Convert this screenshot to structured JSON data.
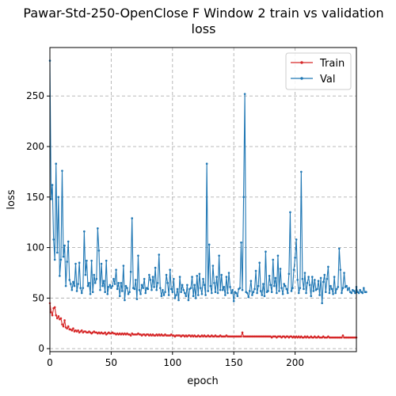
{
  "chart_data": {
    "type": "line",
    "title_line1": "Pawar-Std-250-OpenClose F Window 2 train vs validation",
    "title_line2": "loss",
    "xlabel": "epoch",
    "ylabel": "loss",
    "xlim": [
      0,
      250
    ],
    "ylim": [
      -3,
      298
    ],
    "xticks": [
      0,
      50,
      100,
      150,
      200
    ],
    "yticks": [
      0,
      50,
      100,
      150,
      200,
      250
    ],
    "grid": true,
    "legend_position": "top-right",
    "series": [
      {
        "name": "Train",
        "color": "#d62728",
        "values": [
          45,
          36,
          33,
          40,
          41,
          33,
          30,
          32,
          29,
          30,
          24,
          22,
          28,
          21,
          20,
          22,
          19,
          19,
          18,
          20,
          17,
          18,
          17,
          18,
          16,
          17,
          18,
          16,
          17,
          17,
          16,
          16,
          17,
          16,
          15,
          16,
          17,
          16,
          16,
          15,
          16,
          15,
          16,
          15,
          15,
          16,
          14,
          15,
          16,
          15,
          15,
          16,
          15,
          15,
          14,
          15,
          14,
          15,
          14,
          15,
          14,
          15,
          14,
          15,
          14,
          14,
          13,
          15,
          14,
          14,
          14,
          14,
          15,
          14,
          14,
          13,
          14,
          14,
          13,
          14,
          14,
          13,
          14,
          13,
          14,
          13,
          13,
          14,
          13,
          14,
          13,
          14,
          13,
          13,
          14,
          13,
          13,
          13,
          13,
          14,
          13,
          13,
          12,
          13,
          13,
          13,
          13,
          12,
          13,
          13,
          12,
          13,
          12,
          13,
          13,
          12,
          13,
          12,
          13,
          12,
          12,
          13,
          12,
          12,
          13,
          12,
          13,
          12,
          12,
          13,
          12,
          12,
          13,
          12,
          12,
          13,
          12,
          12,
          12,
          13,
          12,
          12,
          12,
          12,
          13,
          12,
          12,
          12,
          12,
          12,
          12,
          12,
          12,
          12,
          12,
          12,
          12,
          16,
          12,
          12,
          12,
          12,
          12,
          12,
          12,
          12,
          12,
          12,
          12,
          12,
          12,
          12,
          12,
          12,
          12,
          12,
          12,
          12,
          12,
          12,
          12,
          11,
          12,
          12,
          12,
          11,
          12,
          12,
          12,
          11,
          12,
          12,
          11,
          12,
          12,
          11,
          12,
          12,
          11,
          12,
          11,
          12,
          11,
          12,
          11,
          12,
          11,
          11,
          12,
          11,
          12,
          11,
          11,
          12,
          11,
          11,
          12,
          11,
          11,
          12,
          11,
          11,
          11,
          12,
          11,
          11,
          11,
          12,
          11,
          11,
          11,
          11,
          11,
          11,
          11,
          11,
          11,
          11,
          11,
          13,
          11,
          11,
          11,
          11,
          11,
          11,
          11,
          11,
          11,
          11,
          11
        ]
      },
      {
        "name": "Val",
        "color": "#1f77b4",
        "values": [
          285,
          148,
          162,
          108,
          88,
          183,
          95,
          150,
          72,
          88,
          176,
          91,
          102,
          62,
          86,
          106,
          68,
          64,
          58,
          66,
          62,
          84,
          57,
          64,
          85,
          60,
          55,
          60,
          116,
          73,
          87,
          62,
          65,
          54,
          87,
          56,
          73,
          65,
          69,
          119,
          97,
          58,
          84,
          62,
          67,
          56,
          87,
          54,
          61,
          63,
          60,
          62,
          69,
          64,
          78,
          59,
          65,
          52,
          65,
          57,
          82,
          48,
          62,
          60,
          54,
          56,
          76,
          129,
          60,
          59,
          68,
          49,
          92,
          58,
          54,
          63,
          60,
          69,
          55,
          60,
          59,
          73,
          68,
          58,
          71,
          61,
          80,
          58,
          65,
          93,
          60,
          52,
          58,
          53,
          56,
          73,
          65,
          53,
          78,
          59,
          56,
          69,
          50,
          53,
          59,
          48,
          71,
          56,
          63,
          58,
          55,
          52,
          63,
          48,
          59,
          60,
          71,
          52,
          63,
          50,
          72,
          53,
          74,
          60,
          54,
          69,
          63,
          53,
          183,
          57,
          103,
          62,
          55,
          82,
          65,
          56,
          71,
          55,
          92,
          58,
          73,
          58,
          61,
          53,
          71,
          55,
          75,
          61,
          55,
          58,
          47,
          56,
          55,
          52,
          59,
          60,
          105,
          58,
          150,
          252,
          56,
          55,
          51,
          57,
          67,
          53,
          56,
          59,
          77,
          55,
          62,
          85,
          57,
          53,
          64,
          52,
          96,
          56,
          57,
          72,
          63,
          56,
          88,
          62,
          70,
          55,
          92,
          57,
          79,
          60,
          54,
          64,
          62,
          59,
          55,
          74,
          135,
          57,
          60,
          78,
          90,
          108,
          68,
          55,
          60,
          175,
          69,
          59,
          75,
          55,
          65,
          71,
          63,
          52,
          71,
          57,
          68,
          58,
          59,
          67,
          53,
          70,
          45,
          66,
          73,
          56,
          69,
          81,
          55,
          62,
          59,
          54,
          71,
          55,
          59,
          61,
          99,
          78,
          55,
          60,
          75,
          61,
          62,
          58,
          60,
          56,
          55,
          58,
          57,
          55,
          61,
          56,
          55,
          58,
          56,
          55,
          60,
          56,
          56
        ]
      }
    ]
  }
}
